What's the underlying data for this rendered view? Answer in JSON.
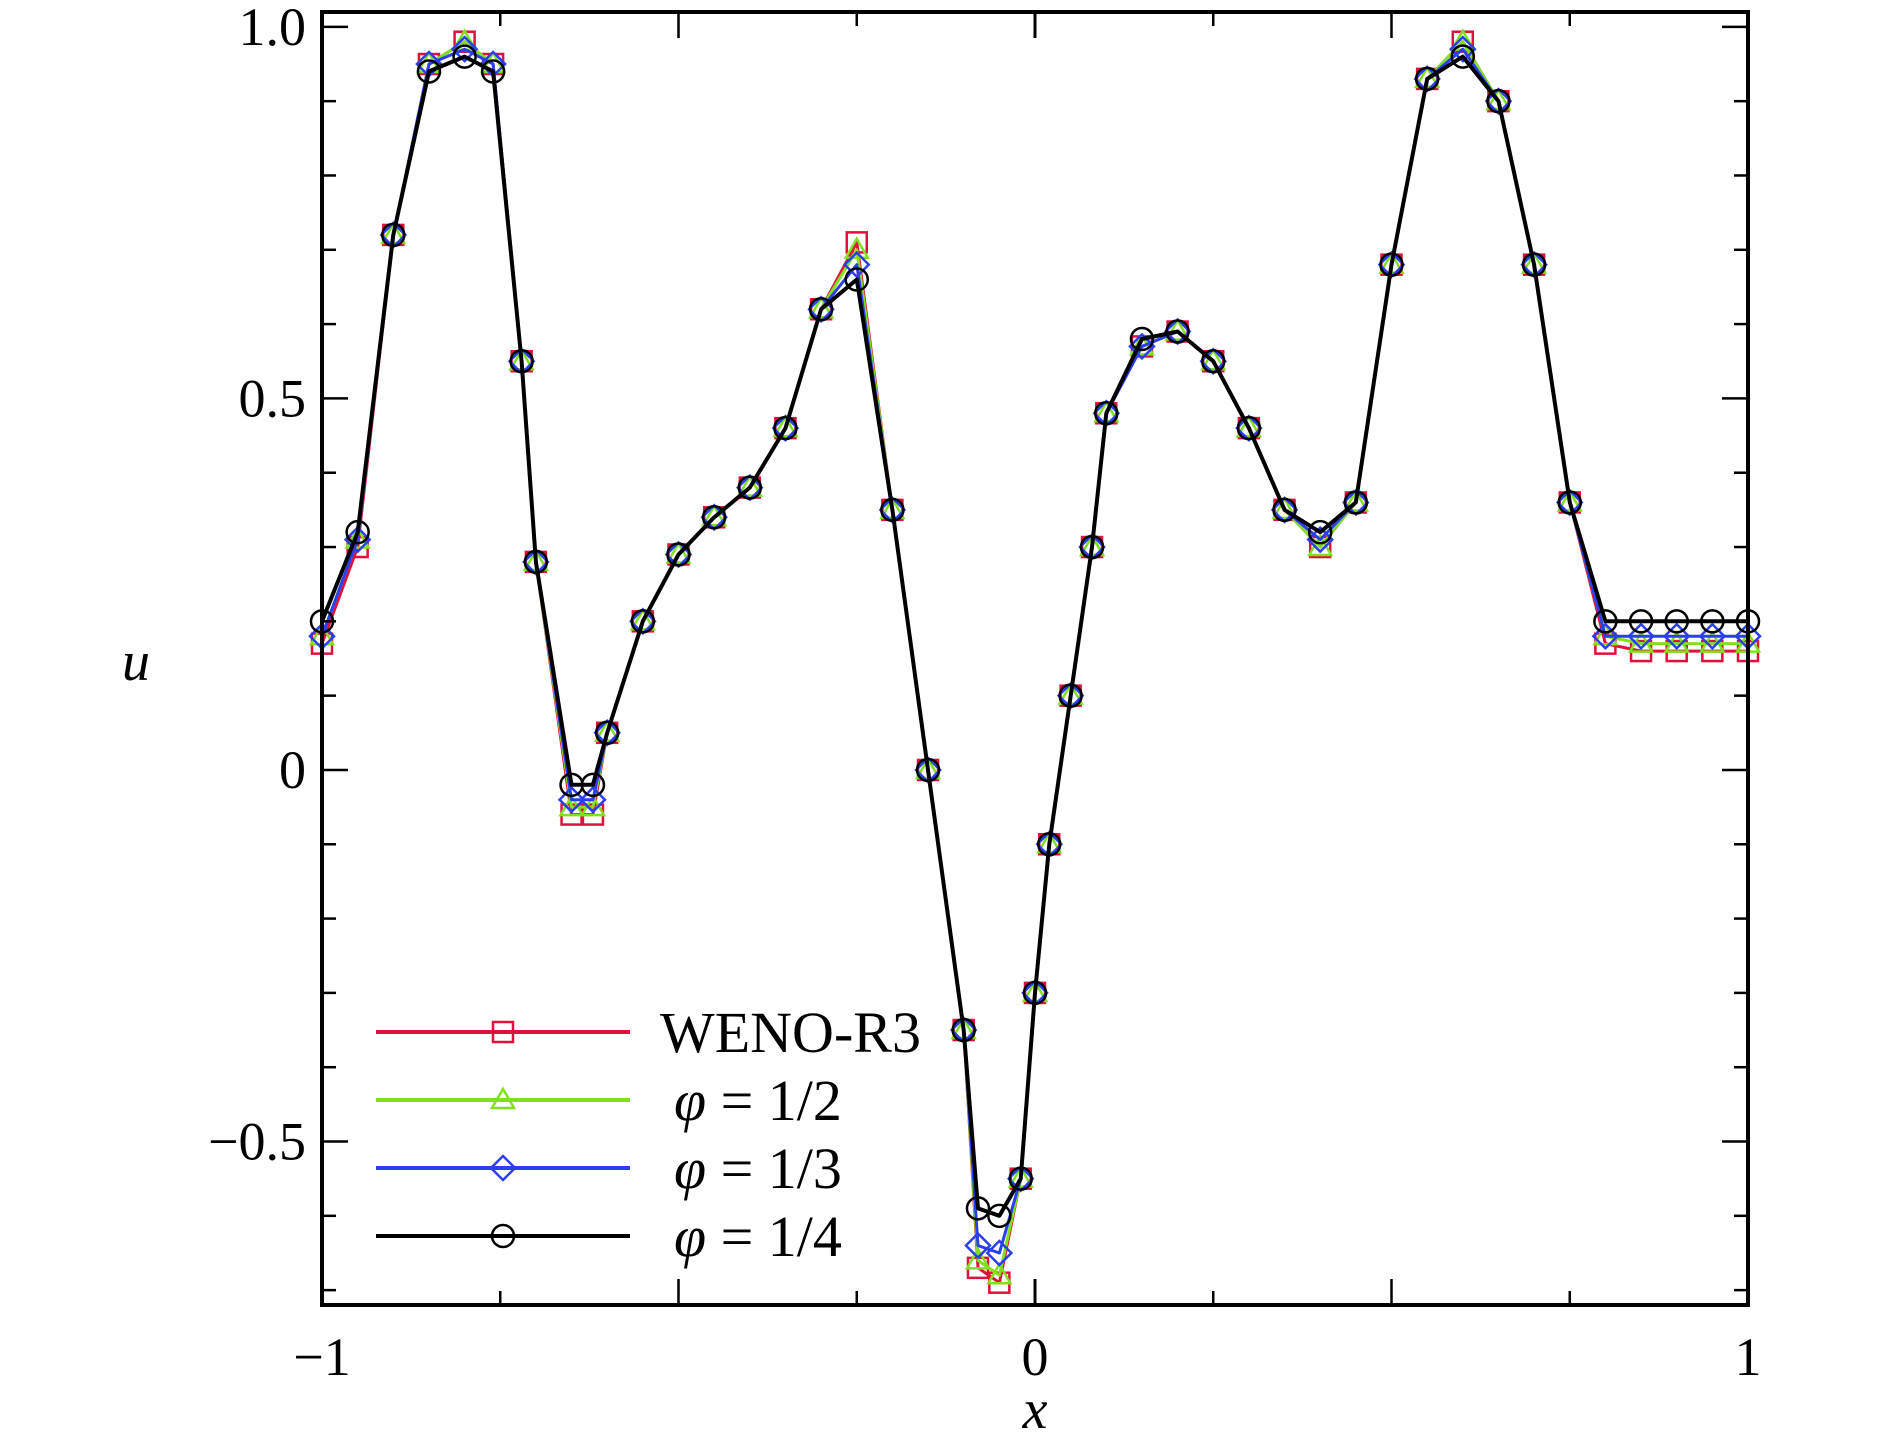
{
  "chart_data": {
    "type": "line",
    "xlabel": "x",
    "ylabel": "u",
    "xlim": [
      -1,
      1
    ],
    "ylim": [
      -0.72,
      1.02
    ],
    "xticks": [
      -1,
      0,
      1
    ],
    "xtick_labels": [
      "−1",
      "0",
      "1"
    ],
    "yticks": [
      -0.5,
      0,
      0.5,
      1.0
    ],
    "ytick_labels": [
      "−0.5",
      "0",
      "0.5",
      "1.0"
    ],
    "grid": false,
    "legend_position": "bottom-left",
    "colors": {
      "weno_r3": "#e0103c",
      "phi_1_2": "#80e020",
      "phi_1_3": "#2b3ff0",
      "phi_1_4": "#000000"
    },
    "x": [
      -1.0,
      -0.95,
      -0.9,
      -0.85,
      -0.8,
      -0.76,
      -0.72,
      -0.7,
      -0.65,
      -0.62,
      -0.6,
      -0.55,
      -0.5,
      -0.45,
      -0.4,
      -0.35,
      -0.3,
      -0.25,
      -0.2,
      -0.15,
      -0.1,
      -0.08,
      -0.05,
      -0.02,
      0.0,
      0.02,
      0.05,
      0.08,
      0.1,
      0.15,
      0.2,
      0.25,
      0.3,
      0.35,
      0.4,
      0.45,
      0.5,
      0.55,
      0.6,
      0.65,
      0.7,
      0.75,
      0.8,
      0.85,
      0.9,
      0.95,
      1.0
    ],
    "series": [
      {
        "name": "WENO-R3",
        "marker": "square",
        "values": [
          0.17,
          0.3,
          0.72,
          0.95,
          0.98,
          0.95,
          0.55,
          0.28,
          -0.06,
          -0.06,
          0.05,
          0.2,
          0.29,
          0.34,
          0.38,
          0.46,
          0.62,
          0.71,
          0.35,
          0.0,
          -0.35,
          -0.67,
          -0.69,
          -0.55,
          -0.3,
          -0.1,
          0.1,
          0.3,
          0.48,
          0.57,
          0.59,
          0.55,
          0.46,
          0.35,
          0.3,
          0.36,
          0.68,
          0.93,
          0.98,
          0.9,
          0.68,
          0.36,
          0.17,
          0.16,
          0.16,
          0.16,
          0.16
        ]
      },
      {
        "name": "φ = 1/2",
        "marker": "triangle",
        "values": [
          0.18,
          0.31,
          0.72,
          0.95,
          0.98,
          0.95,
          0.55,
          0.28,
          -0.05,
          -0.05,
          0.05,
          0.2,
          0.29,
          0.34,
          0.38,
          0.46,
          0.62,
          0.7,
          0.35,
          0.0,
          -0.35,
          -0.66,
          -0.68,
          -0.55,
          -0.3,
          -0.1,
          0.1,
          0.3,
          0.48,
          0.57,
          0.59,
          0.55,
          0.46,
          0.35,
          0.3,
          0.36,
          0.68,
          0.93,
          0.98,
          0.9,
          0.68,
          0.36,
          0.18,
          0.17,
          0.17,
          0.17,
          0.17
        ]
      },
      {
        "name": "φ = 1/3",
        "marker": "diamond",
        "values": [
          0.18,
          0.31,
          0.72,
          0.95,
          0.97,
          0.95,
          0.55,
          0.28,
          -0.04,
          -0.04,
          0.05,
          0.2,
          0.29,
          0.34,
          0.38,
          0.46,
          0.62,
          0.68,
          0.35,
          0.0,
          -0.35,
          -0.64,
          -0.65,
          -0.55,
          -0.3,
          -0.1,
          0.1,
          0.3,
          0.48,
          0.57,
          0.59,
          0.55,
          0.46,
          0.35,
          0.31,
          0.36,
          0.68,
          0.93,
          0.97,
          0.9,
          0.68,
          0.36,
          0.18,
          0.18,
          0.18,
          0.18,
          0.18
        ]
      },
      {
        "name": "φ = 1/4",
        "marker": "circle",
        "values": [
          0.2,
          0.32,
          0.72,
          0.94,
          0.96,
          0.94,
          0.55,
          0.28,
          -0.02,
          -0.02,
          0.05,
          0.2,
          0.29,
          0.34,
          0.38,
          0.46,
          0.62,
          0.66,
          0.35,
          0.0,
          -0.35,
          -0.59,
          -0.6,
          -0.55,
          -0.3,
          -0.1,
          0.1,
          0.3,
          0.48,
          0.58,
          0.59,
          0.55,
          0.46,
          0.35,
          0.32,
          0.36,
          0.68,
          0.93,
          0.96,
          0.9,
          0.68,
          0.36,
          0.2,
          0.2,
          0.2,
          0.2,
          0.2
        ]
      }
    ],
    "legend": [
      {
        "label": "WENO-R3",
        "prefix": "",
        "value": ""
      },
      {
        "label": "",
        "prefix": "φ",
        "value": " = 1/2"
      },
      {
        "label": "",
        "prefix": "φ",
        "value": " = 1/3"
      },
      {
        "label": "",
        "prefix": "φ",
        "value": " = 1/4"
      }
    ]
  }
}
